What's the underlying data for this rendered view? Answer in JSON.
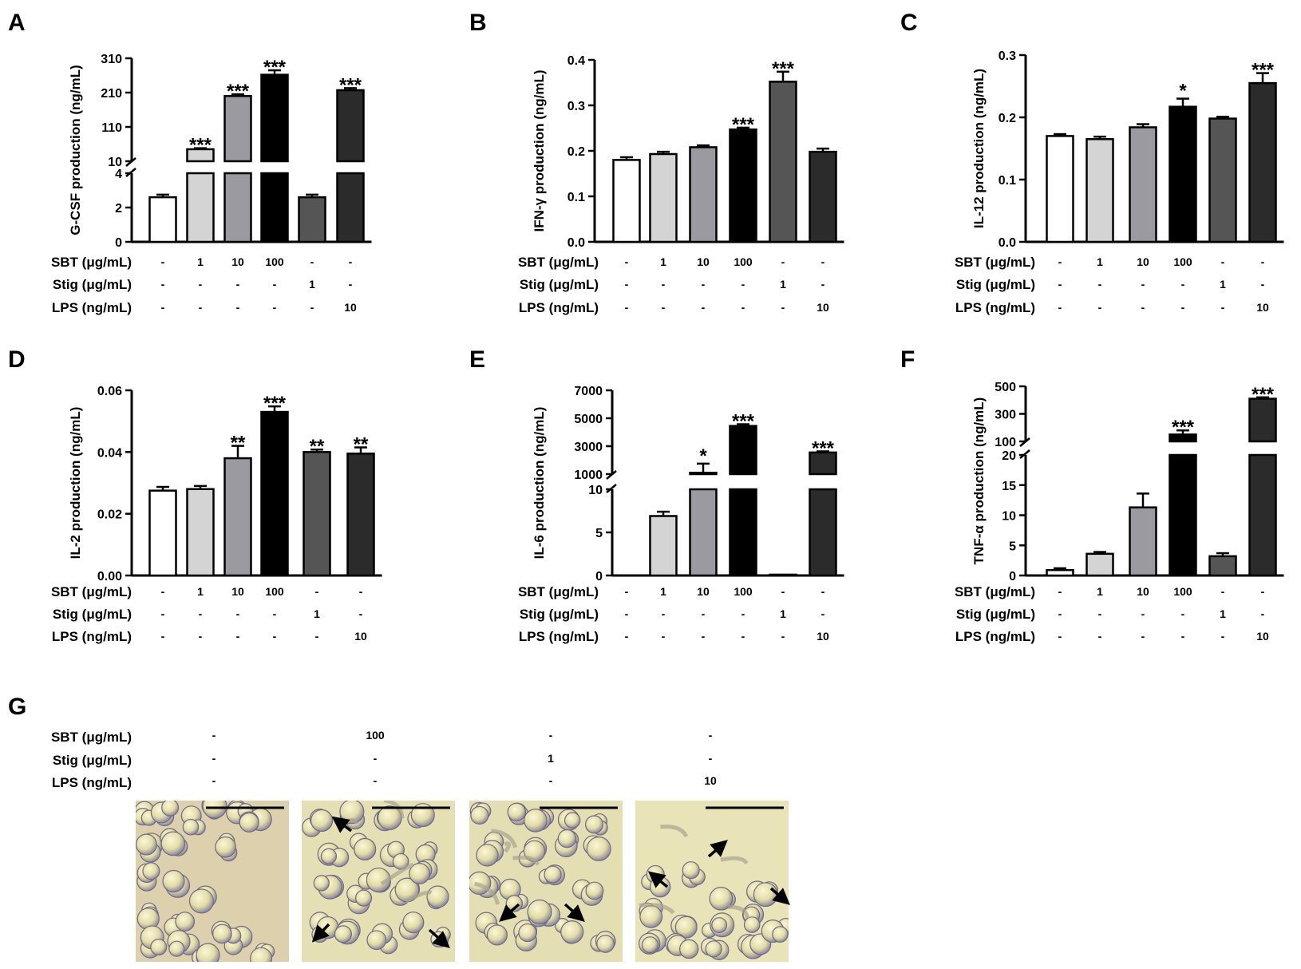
{
  "figure": {
    "treatments": {
      "labels": [
        "SBT (μg/mL)",
        "Stig (μg/mL)",
        "LPS (ng/mL)"
      ],
      "groups": [
        [
          "-",
          "-",
          "-"
        ],
        [
          "1",
          "-",
          "-"
        ],
        [
          "10",
          "-",
          "-"
        ],
        [
          "100",
          "-",
          "-"
        ],
        [
          "-",
          "1",
          "-"
        ],
        [
          "-",
          "-",
          "10"
        ]
      ]
    },
    "bar_colors": [
      "#ffffff",
      "#d4d4d4",
      "#9a9aa0",
      "#000000",
      "#555555",
      "#2b2b2b"
    ],
    "microscopy": {
      "letter": "G",
      "groups": [
        [
          "-",
          "-",
          "-"
        ],
        [
          "100",
          "-",
          "-"
        ],
        [
          "-",
          "1",
          "-"
        ],
        [
          "-",
          "-",
          "10"
        ]
      ],
      "image_descriptions": [
        "untreated-cells",
        "sbt-100-cells",
        "stig-1-cells",
        "lps-10-cells"
      ]
    }
  },
  "chart_data": [
    {
      "panel": "A",
      "type": "bar",
      "title": "",
      "ylabel": "G-CSF production (ng/mL)",
      "broken_axis": true,
      "lower": {
        "range": [
          0,
          4
        ],
        "ticks": [
          "0",
          "2",
          "4"
        ],
        "tick_values": [
          0,
          2,
          4
        ]
      },
      "upper": {
        "range": [
          10,
          310
        ],
        "ticks": [
          "10",
          "110",
          "210",
          "310"
        ],
        "tick_values": [
          10,
          110,
          210,
          310
        ]
      },
      "values": [
        2.6,
        45,
        200,
        262,
        2.6,
        217
      ],
      "errors": [
        0.15,
        3,
        5,
        13,
        0.15,
        6
      ],
      "significance": [
        "",
        "***",
        "***",
        "***",
        "",
        "***"
      ]
    },
    {
      "panel": "B",
      "type": "bar",
      "title": "",
      "ylabel": "IFN-γ production (ng/mL)",
      "broken_axis": false,
      "ylim": [
        0,
        0.4
      ],
      "ticks": [
        "0.0",
        "0.1",
        "0.2",
        "0.3",
        "0.4"
      ],
      "tick_values": [
        0,
        0.1,
        0.2,
        0.3,
        0.4
      ],
      "values": [
        0.18,
        0.193,
        0.208,
        0.247,
        0.352,
        0.198
      ],
      "errors": [
        0.006,
        0.005,
        0.004,
        0.004,
        0.022,
        0.007
      ],
      "significance": [
        "",
        "",
        "",
        "***",
        "***",
        ""
      ]
    },
    {
      "panel": "C",
      "type": "bar",
      "title": "",
      "ylabel": "IL-12 production (ng/mL)",
      "broken_axis": false,
      "ylim": [
        0,
        0.3
      ],
      "ticks": [
        "0.0",
        "0.1",
        "0.2",
        "0.3"
      ],
      "tick_values": [
        0,
        0.1,
        0.2,
        0.3
      ],
      "values": [
        0.17,
        0.165,
        0.184,
        0.217,
        0.198,
        0.255
      ],
      "errors": [
        0.003,
        0.004,
        0.005,
        0.013,
        0.003,
        0.016
      ],
      "significance": [
        "",
        "",
        "",
        "*",
        "",
        "***"
      ]
    },
    {
      "panel": "D",
      "type": "bar",
      "title": "",
      "ylabel": "IL-2 production (ng/mL)",
      "broken_axis": false,
      "ylim": [
        0,
        0.06
      ],
      "ticks": [
        "0.00",
        "0.02",
        "0.04",
        "0.06"
      ],
      "tick_values": [
        0,
        0.02,
        0.04,
        0.06
      ],
      "values": [
        0.0275,
        0.028,
        0.038,
        0.053,
        0.04,
        0.0395
      ],
      "errors": [
        0.0012,
        0.001,
        0.004,
        0.0018,
        0.0008,
        0.002
      ],
      "significance": [
        "",
        "",
        "**",
        "***",
        "**",
        "**"
      ]
    },
    {
      "panel": "E",
      "type": "bar",
      "title": "",
      "ylabel": "IL-6 production (ng/mL)",
      "broken_axis": true,
      "lower": {
        "range": [
          0,
          10
        ],
        "ticks": [
          "0",
          "5",
          "10"
        ],
        "tick_values": [
          0,
          5,
          10
        ]
      },
      "upper": {
        "range": [
          1000,
          7000
        ],
        "ticks": [
          "1000",
          "3000",
          "5000",
          "7000"
        ],
        "tick_values": [
          1000,
          3000,
          5000,
          7000
        ]
      },
      "values": [
        0,
        6.9,
        1100,
        4450,
        0.1,
        2550
      ],
      "errors": [
        0,
        0.5,
        650,
        120,
        0,
        80
      ],
      "significance": [
        "",
        "",
        "*",
        "***",
        "",
        "***"
      ]
    },
    {
      "panel": "F",
      "type": "bar",
      "title": "",
      "ylabel": "TNF-α production (ng/mL)",
      "broken_axis": true,
      "lower": {
        "range": [
          0,
          20
        ],
        "ticks": [
          "0",
          "5",
          "10",
          "15",
          "20"
        ],
        "tick_values": [
          0,
          5,
          10,
          15,
          20
        ]
      },
      "upper": {
        "range": [
          100,
          500
        ],
        "ticks": [
          "100",
          "300",
          "500"
        ],
        "tick_values": [
          100,
          300,
          500
        ]
      },
      "values": [
        0.9,
        3.6,
        11.3,
        150,
        3.2,
        410
      ],
      "errors": [
        0.3,
        0.3,
        2.3,
        30,
        0.5,
        10
      ],
      "significance": [
        "",
        "",
        "",
        "***",
        "",
        "***"
      ]
    }
  ]
}
